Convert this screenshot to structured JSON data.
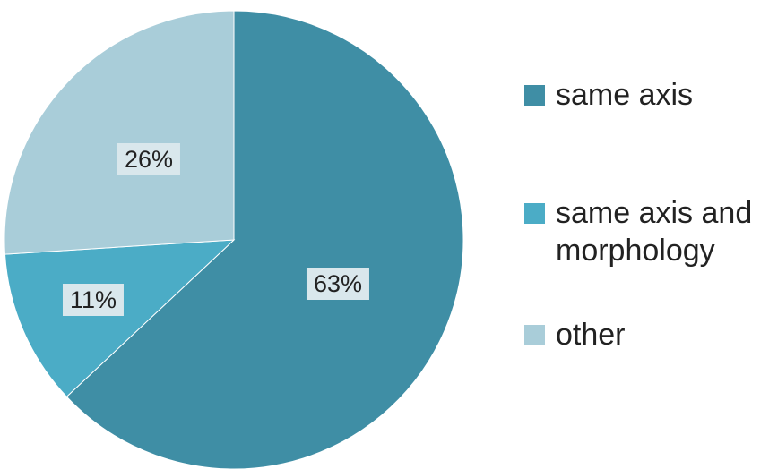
{
  "chart_data": {
    "type": "pie",
    "title": "",
    "slices": [
      {
        "name": "same axis",
        "value": 63,
        "label": "63%",
        "color": "#3f8ea5"
      },
      {
        "name": "same axis and morphology",
        "value": 11,
        "label": "11%",
        "color": "#4bacc6"
      },
      {
        "name": "other",
        "value": 26,
        "label": "26%",
        "color": "#a9cdd9"
      }
    ],
    "start_angle_deg": 0,
    "direction": "clockwise",
    "legend_position": "right",
    "data_labels": "inside"
  }
}
